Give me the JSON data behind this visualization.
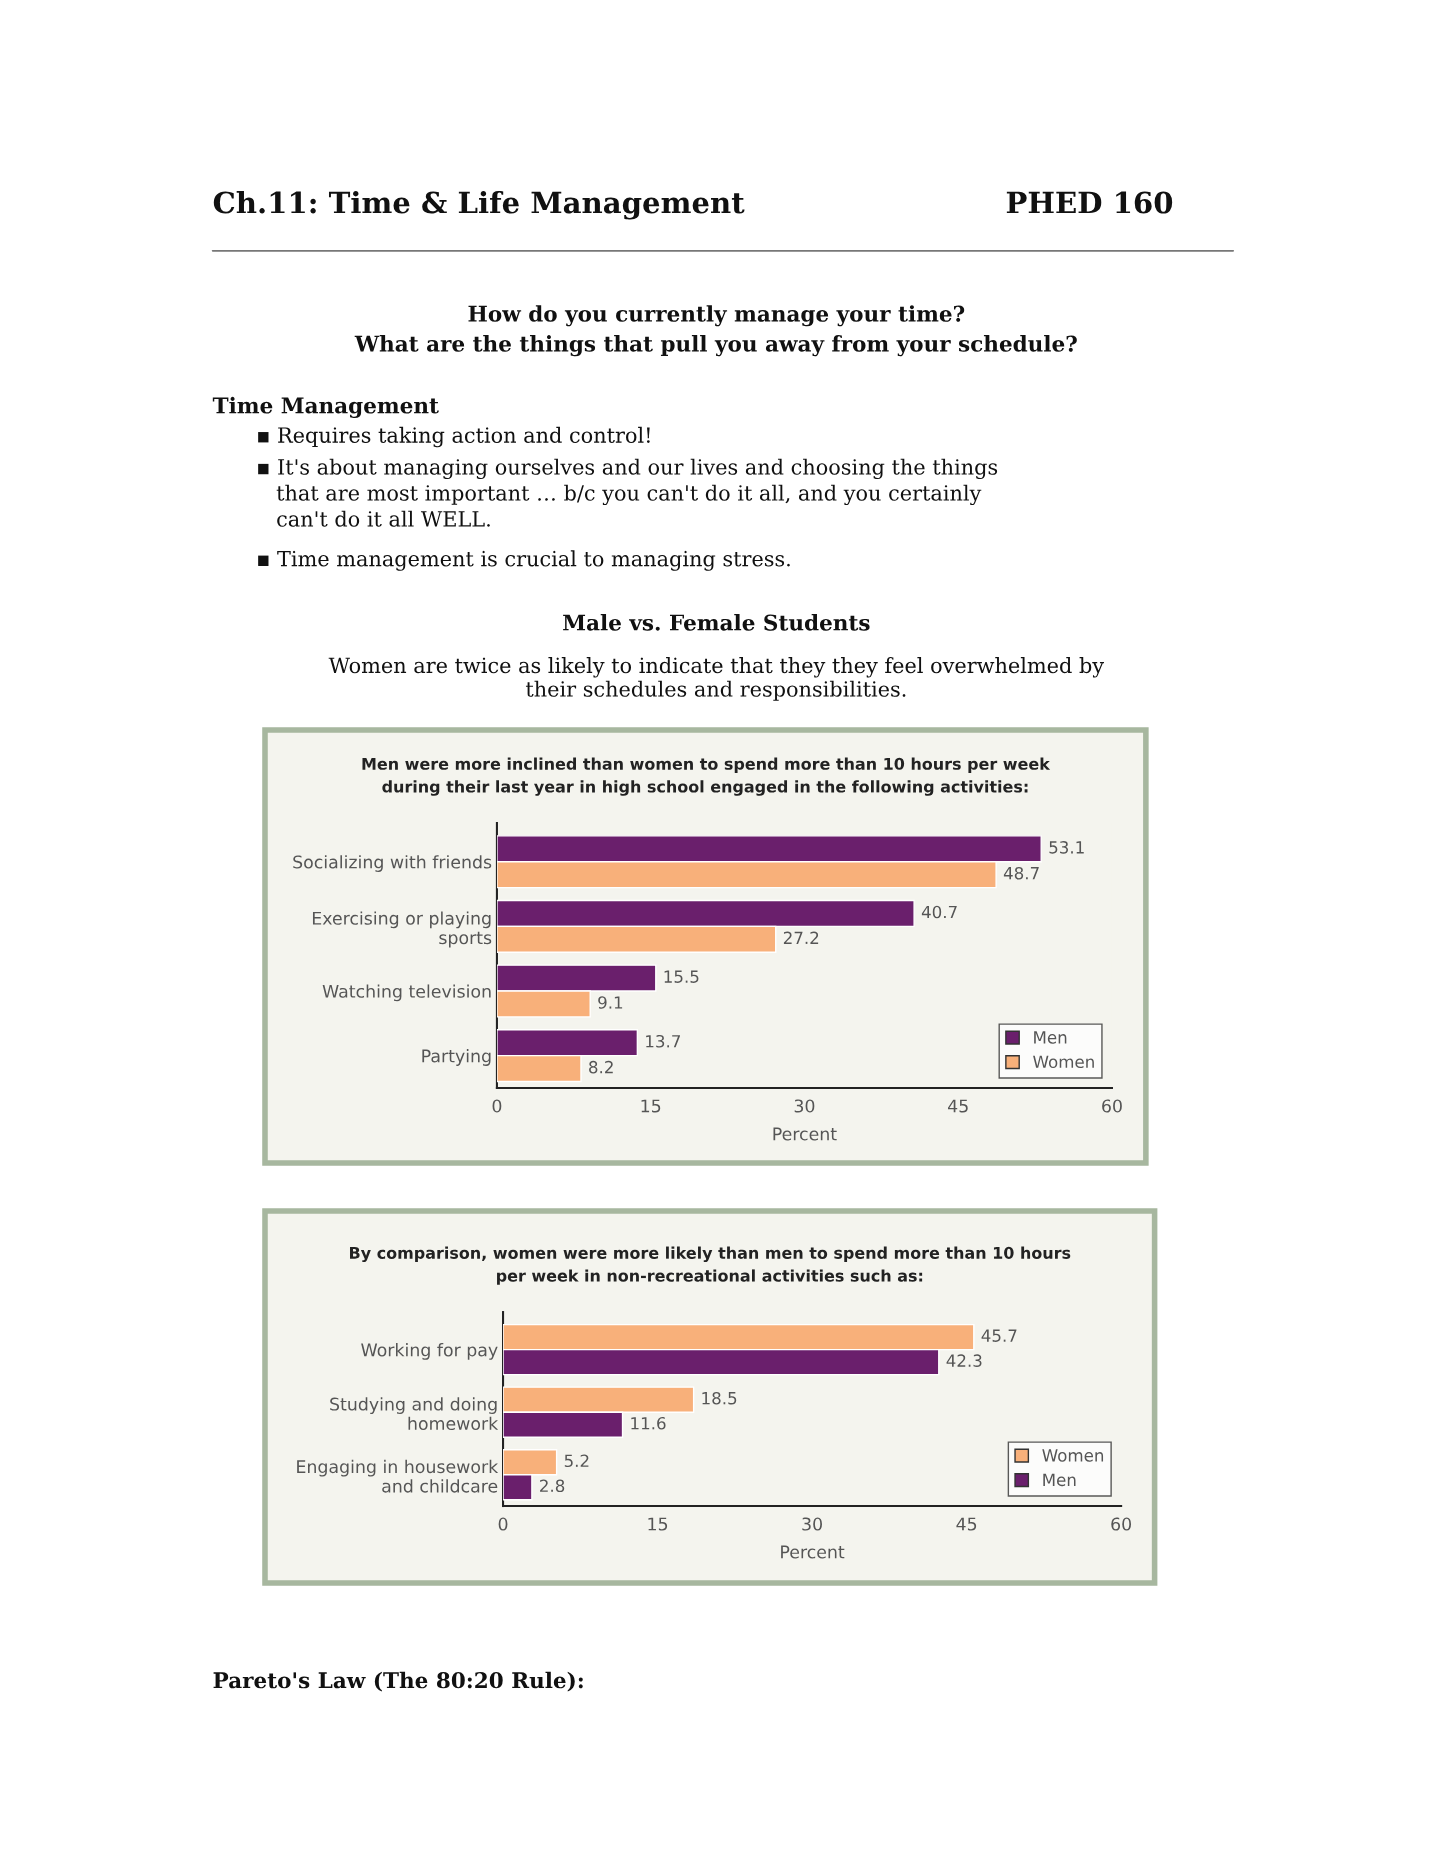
{
  "chart_data": [
    {
      "type": "bar",
      "orientation": "horizontal",
      "title": "Men were more inclined than women to spend more than 10 hours per week\nduring their last year in high school engaged in the following activities:",
      "categories": [
        "Socializing with friends",
        "Exercising or playing\nsports",
        "Watching television",
        "Partying"
      ],
      "series": [
        {
          "name": "Men",
          "color": "#6a1f6c",
          "values": [
            53.1,
            40.7,
            15.5,
            13.7
          ]
        },
        {
          "name": "Women",
          "color": "#f8b07a",
          "values": [
            48.7,
            27.2,
            9.1,
            8.2
          ]
        }
      ],
      "xlabel": "Percent",
      "xlim": [
        0,
        60
      ],
      "xticks": [
        0,
        15,
        30,
        45,
        60
      ],
      "data_labels": true,
      "legend": "bottom right",
      "grid": false,
      "annotations": [
        "Ch.11: Time & Life Management",
        "PHED 160",
        "How do you currently manage your time?",
        "What are the things that pull you away from your schedule?",
        "Time Management",
        "▪ Requires taking action and control!",
        "▪ It's about managing ourselves and our lives and choosing the things\n   that are most important … b/c you can't do it all, and you certainly\n   can't do it all WELL.",
        "▪ Time management is crucial to managing stress.",
        "Male vs. Female Students",
        "Women are twice as likely to indicate that they they feel overwhelmed by\ntheir schedules and responsibilities."
      ]
    },
    {
      "type": "bar",
      "orientation": "horizontal",
      "title": "By comparison, women were more likely than men to spend more than 10 hours\nper week in non-recreational activities such as:",
      "categories": [
        "Working for pay",
        "Studying and doing\nhomework",
        "Engaging in housework\nand childcare"
      ],
      "series": [
        {
          "name": "Women",
          "color": "#f8b07a",
          "values": [
            45.7,
            18.5,
            5.2
          ]
        },
        {
          "name": "Men",
          "color": "#6a1f6c",
          "values": [
            42.3,
            11.6,
            2.8
          ]
        }
      ],
      "xlabel": "Percent",
      "xlim": [
        0,
        60
      ],
      "xticks": [
        0,
        15,
        30,
        45,
        60
      ],
      "data_labels": true,
      "legend": "bottom right",
      "grid": false,
      "annotations": [
        "Pareto's Law (The 80:20 Rule):"
      ]
    }
  ]
}
